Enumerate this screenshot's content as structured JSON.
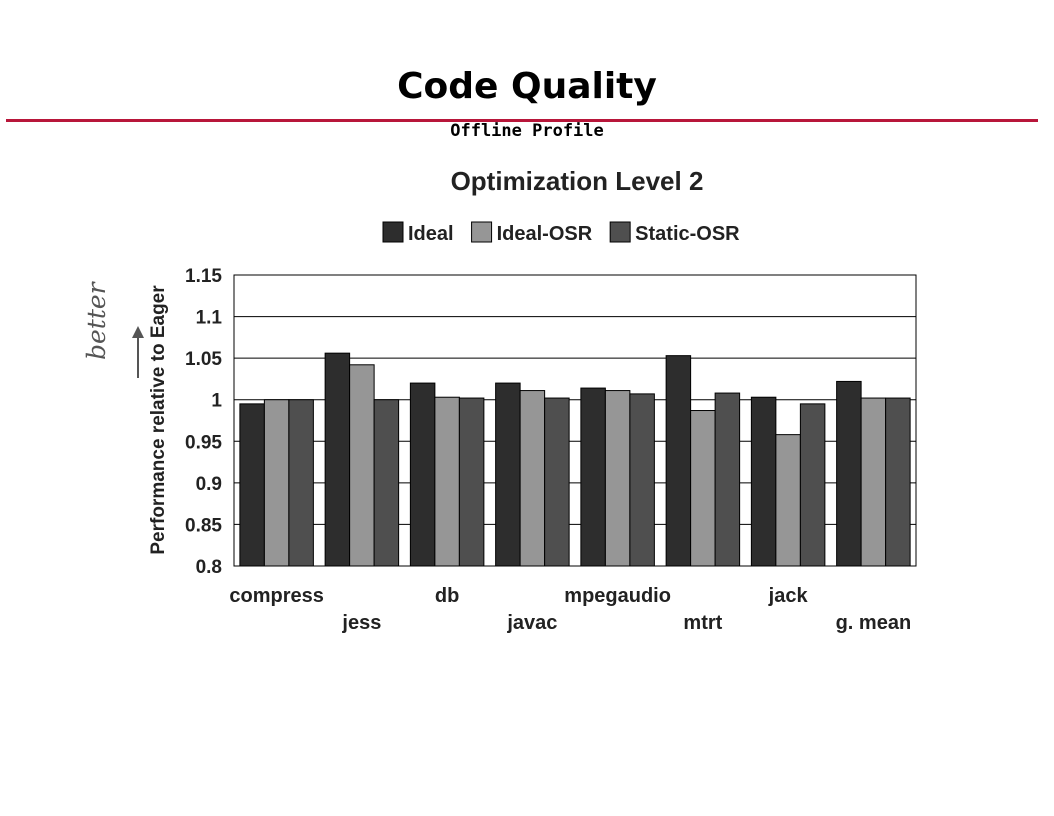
{
  "slide": {
    "title": "Code Quality",
    "subtitle": "Offline Profile",
    "annotation": "better"
  },
  "colors": {
    "title_rule": "#b8163a",
    "Ideal": "#2d2d2d",
    "Ideal-OSR": "#969696",
    "Static-OSR": "#4f4f4f"
  },
  "chart_data": {
    "type": "bar",
    "title": "Optimization Level 2",
    "xlabel": "",
    "ylabel": "Performance relative to Eager",
    "ylim": [
      0.8,
      1.15
    ],
    "yticks": [
      "0.8",
      "0.85",
      "0.9",
      "0.95",
      "1",
      "1.05",
      "1.1",
      "1.15"
    ],
    "grid": true,
    "legend_position": "top",
    "categories": [
      "compress",
      "jess",
      "db",
      "javac",
      "mpegaudio",
      "mtrt",
      "jack",
      "g. mean"
    ],
    "series": [
      {
        "name": "Ideal",
        "values": [
          0.995,
          1.056,
          1.02,
          1.02,
          1.014,
          1.053,
          1.003,
          1.022
        ]
      },
      {
        "name": "Ideal-OSR",
        "values": [
          1.0,
          1.042,
          1.003,
          1.011,
          1.011,
          0.987,
          0.958,
          1.002
        ]
      },
      {
        "name": "Static-OSR",
        "values": [
          1.0,
          1.0,
          1.002,
          1.002,
          1.007,
          1.008,
          0.995,
          1.002
        ]
      }
    ]
  }
}
